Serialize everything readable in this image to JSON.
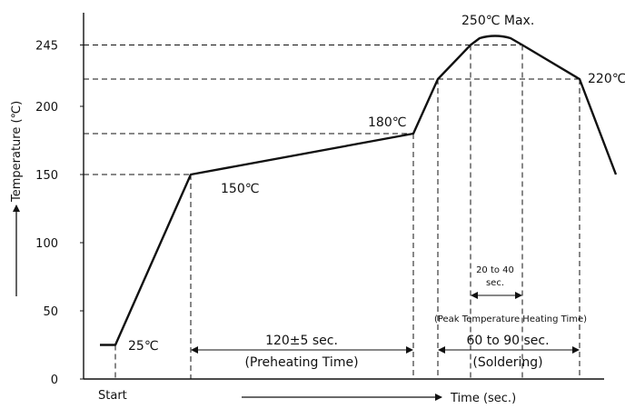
{
  "chart_data": {
    "type": "line",
    "title": "",
    "ylabel": "Temperature (℃)",
    "xlabel": "Time (sec.)",
    "x_start_label": "Start",
    "y_ticks": [
      0,
      50,
      100,
      150,
      200,
      245
    ],
    "ylim": [
      0,
      255
    ],
    "series": [
      {
        "points": [
          {
            "t": 0,
            "temp": 25
          },
          {
            "t": 10,
            "temp": 25
          },
          {
            "t": 40,
            "temp": 150
          },
          {
            "t": 160,
            "temp": 180
          },
          {
            "t": 174,
            "temp": 220
          },
          {
            "t": 192,
            "temp": 245
          },
          {
            "t": 198,
            "temp": 250
          },
          {
            "t": 208,
            "temp": 250
          },
          {
            "t": 220,
            "temp": 245
          },
          {
            "t": 250,
            "temp": 220
          },
          {
            "t": 268,
            "temp": 150
          }
        ]
      }
    ],
    "reference_lines": {
      "horizontal": [
        150,
        180,
        220,
        245
      ],
      "vertical": [
        10,
        40,
        160,
        174,
        192,
        220,
        250
      ]
    },
    "annotations": {
      "start_temp": "25℃",
      "preheat_start_temp": "150℃",
      "preheat_end_temp": "180℃",
      "peak": "250℃ Max.",
      "solder_temp": "220℃",
      "preheat_duration": "120±5 sec.",
      "preheat_label": "(Preheating Time)",
      "solder_duration": "60 to 90 sec.",
      "solder_label": "(Soldering)",
      "peak_duration_line1": "20 to 40",
      "peak_duration_line2": "sec.",
      "peak_label": "(Peak Temperature Heating Time)"
    }
  }
}
